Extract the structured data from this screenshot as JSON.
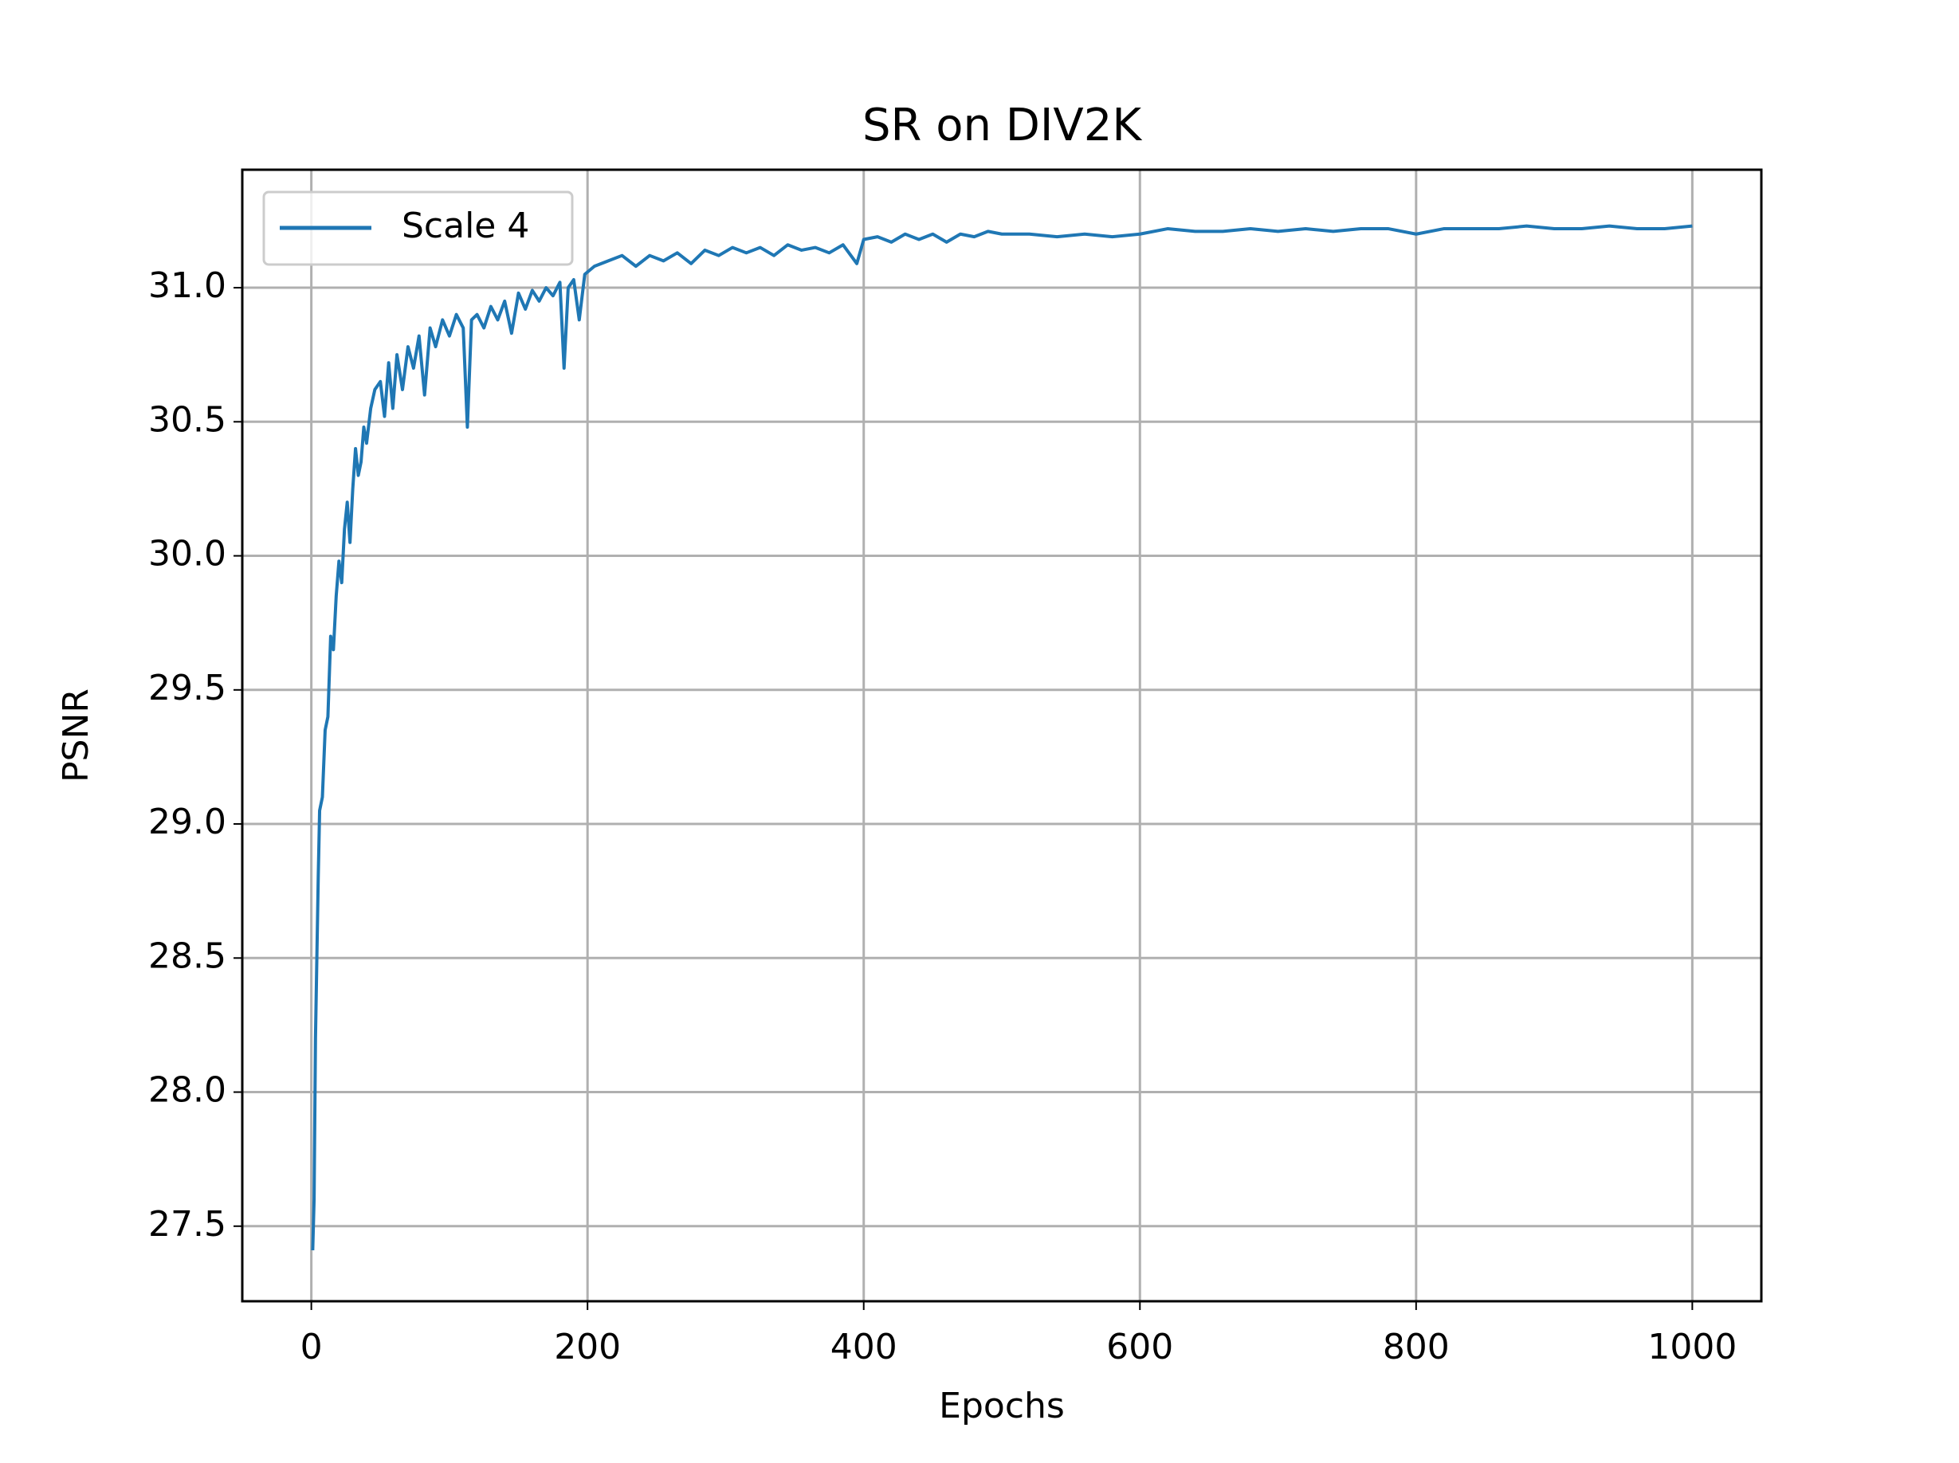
{
  "chart_data": {
    "type": "line",
    "title": "SR on DIV2K",
    "x_label": "Epochs",
    "y_label": "PSNR",
    "x": [
      1,
      2,
      3,
      5,
      6,
      8,
      10,
      12,
      14,
      16,
      18,
      20,
      22,
      24,
      26,
      28,
      30,
      32,
      34,
      36,
      38,
      40,
      43,
      46,
      50,
      53,
      56,
      59,
      62,
      66,
      70,
      74,
      78,
      82,
      86,
      90,
      95,
      100,
      105,
      110,
      113,
      116,
      120,
      125,
      130,
      135,
      140,
      145,
      150,
      155,
      160,
      165,
      170,
      175,
      180,
      183,
      186,
      190,
      194,
      198,
      205,
      215,
      225,
      235,
      245,
      255,
      265,
      275,
      285,
      295,
      305,
      315,
      325,
      335,
      345,
      355,
      365,
      375,
      385,
      395,
      400,
      410,
      420,
      430,
      440,
      450,
      460,
      470,
      480,
      490,
      500,
      520,
      540,
      560,
      580,
      600,
      620,
      640,
      660,
      680,
      700,
      720,
      740,
      760,
      780,
      800,
      820,
      840,
      860,
      880,
      900,
      920,
      940,
      960,
      980,
      1000
    ],
    "series": [
      {
        "name": "Scale 4",
        "color": "#1f77b4",
        "values": [
          27.41,
          27.6,
          28.2,
          28.8,
          29.05,
          29.1,
          29.35,
          29.4,
          29.7,
          29.65,
          29.85,
          29.98,
          29.9,
          30.1,
          30.2,
          30.05,
          30.25,
          30.4,
          30.3,
          30.35,
          30.48,
          30.42,
          30.55,
          30.62,
          30.65,
          30.52,
          30.72,
          30.55,
          30.75,
          30.62,
          30.78,
          30.7,
          30.82,
          30.6,
          30.85,
          30.78,
          30.88,
          30.82,
          30.9,
          30.85,
          30.48,
          30.88,
          30.9,
          30.85,
          30.93,
          30.88,
          30.95,
          30.83,
          30.98,
          30.92,
          30.99,
          30.95,
          31.0,
          30.97,
          31.02,
          30.7,
          31.0,
          31.03,
          30.88,
          31.05,
          31.08,
          31.1,
          31.12,
          31.08,
          31.12,
          31.1,
          31.13,
          31.09,
          31.14,
          31.12,
          31.15,
          31.13,
          31.15,
          31.12,
          31.16,
          31.14,
          31.15,
          31.13,
          31.16,
          31.09,
          31.18,
          31.19,
          31.17,
          31.2,
          31.18,
          31.2,
          31.17,
          31.2,
          31.19,
          31.21,
          31.2,
          31.2,
          31.19,
          31.2,
          31.19,
          31.2,
          31.22,
          31.21,
          31.21,
          31.22,
          31.21,
          31.22,
          31.21,
          31.22,
          31.22,
          31.2,
          31.22,
          31.22,
          31.22,
          31.23,
          31.22,
          31.22,
          31.23,
          31.22,
          31.22,
          31.23
        ]
      }
    ],
    "xlim": [
      -50,
      1050
    ],
    "ylim": [
      27.22,
      31.44
    ],
    "xticks": [
      0,
      200,
      400,
      600,
      800,
      1000
    ],
    "yticks": [
      27.5,
      {
        "value": 28,
        "label": "28.0"
      },
      28.5,
      {
        "value": 29,
        "label": "29.0"
      },
      29.5,
      {
        "value": 30,
        "label": "30.0"
      },
      30.5,
      {
        "value": 31,
        "label": "31.0"
      }
    ],
    "grid": true,
    "legend": "upper left"
  }
}
